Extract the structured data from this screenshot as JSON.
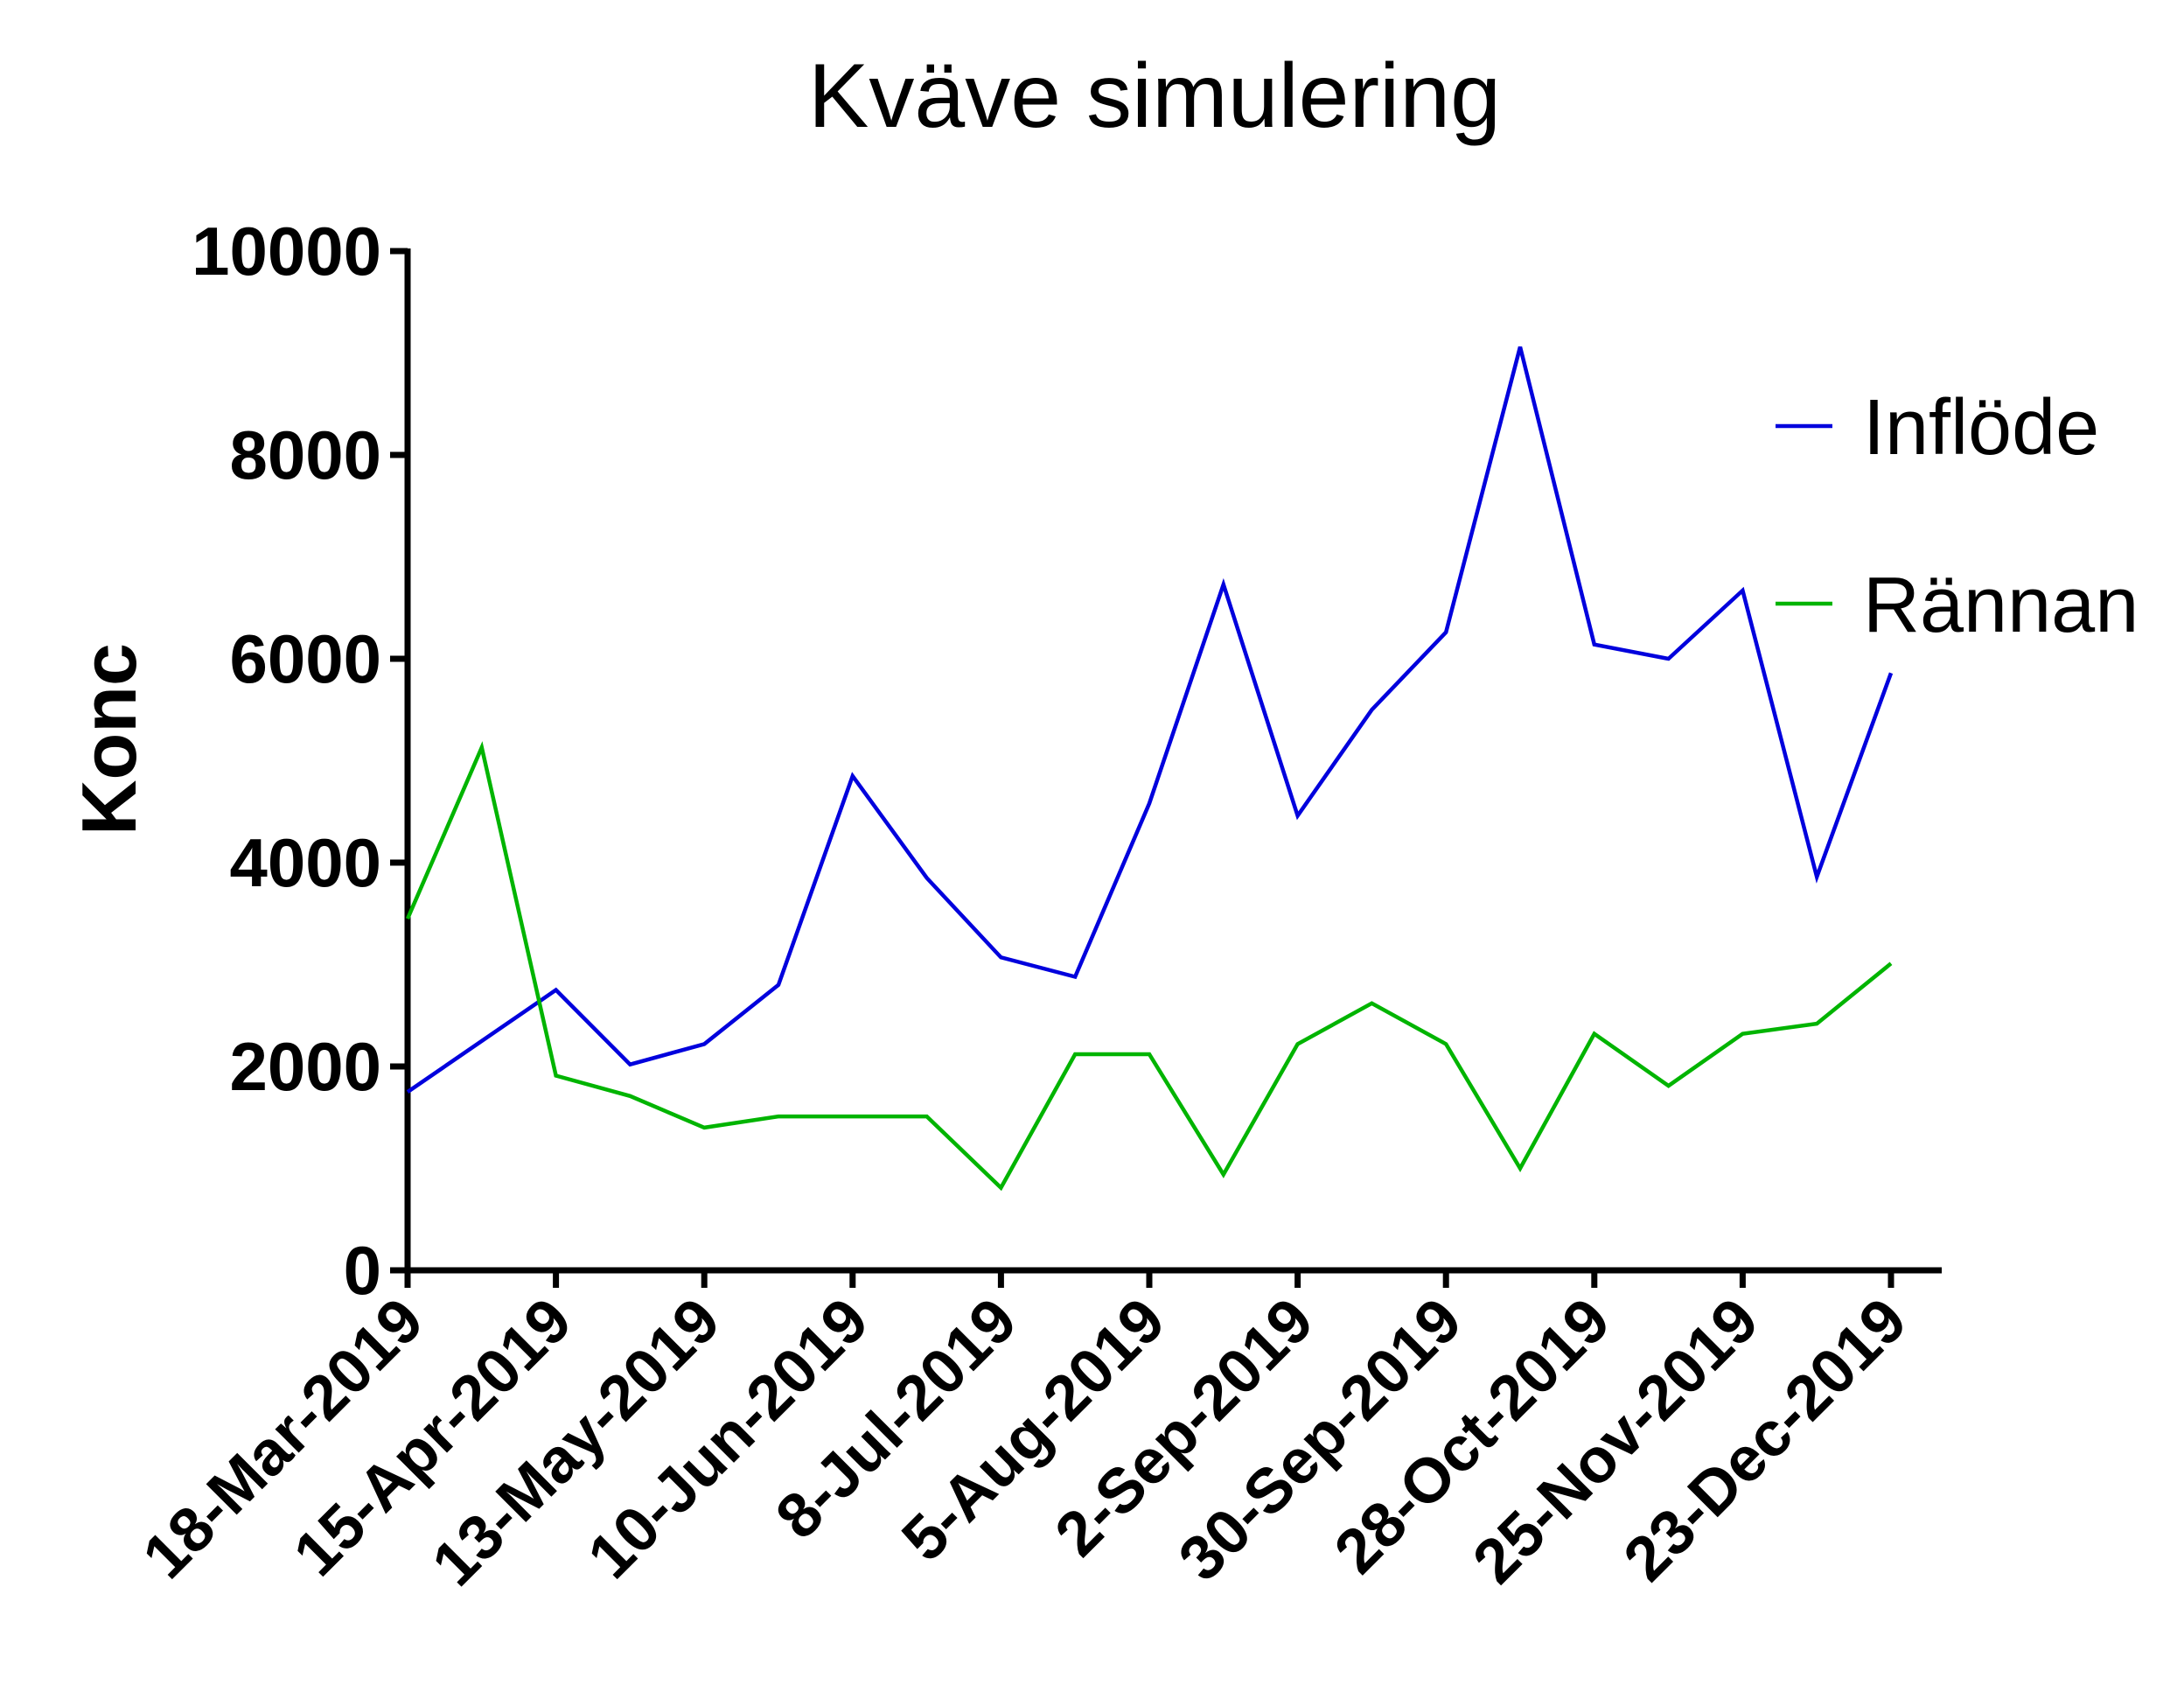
{
  "chart_data": {
    "type": "line",
    "title": "Kväve simulering",
    "xlabel": "",
    "ylabel": "Konc",
    "ylim": [
      0,
      10000
    ],
    "yticks": [
      "0",
      "2000",
      "4000",
      "6000",
      "8000",
      "10000"
    ],
    "x": [
      "2019-03-18",
      "2019-04-01",
      "2019-04-15",
      "2019-04-29",
      "2019-05-13",
      "2019-05-27",
      "2019-06-10",
      "2019-06-24",
      "2019-07-08",
      "2019-07-22",
      "2019-08-05",
      "2019-08-19",
      "2019-09-02",
      "2019-09-16",
      "2019-09-30",
      "2019-10-14",
      "2019-10-28",
      "2019-11-11",
      "2019-11-25",
      "2019-12-09",
      "2019-12-23"
    ],
    "xtick_labels": [
      "18-Mar-2019",
      "15-Apr-2019",
      "13-May-2019",
      "10-Jun-2019",
      "8-Jul-2019",
      "5-Aug-2019",
      "2-Sep-2019",
      "30-Sep-2019",
      "28-Oct-2019",
      "25-Nov-2019",
      "23-Dec-2019"
    ],
    "xtick_dates": [
      "2019-03-18",
      "2019-04-15",
      "2019-05-13",
      "2019-06-10",
      "2019-07-08",
      "2019-08-05",
      "2019-09-02",
      "2019-09-30",
      "2019-10-28",
      "2019-11-25",
      "2019-12-23"
    ],
    "series": [
      {
        "name": "Inflöde",
        "color": "#0000dd",
        "values": [
          1750,
          2250,
          2750,
          2020,
          2220,
          2800,
          4850,
          3850,
          3070,
          2880,
          4580,
          6730,
          4460,
          5500,
          6260,
          9060,
          6140,
          6000,
          6670,
          3860,
          5860
        ]
      },
      {
        "name": "Rännan",
        "color": "#00b400",
        "values": [
          3450,
          5130,
          1910,
          1710,
          1400,
          1510,
          1510,
          1510,
          810,
          2120,
          2120,
          940,
          2220,
          2620,
          2220,
          1000,
          2320,
          1810,
          2320,
          2420,
          3010
        ]
      }
    ],
    "grid": false,
    "legend_position": "right"
  }
}
